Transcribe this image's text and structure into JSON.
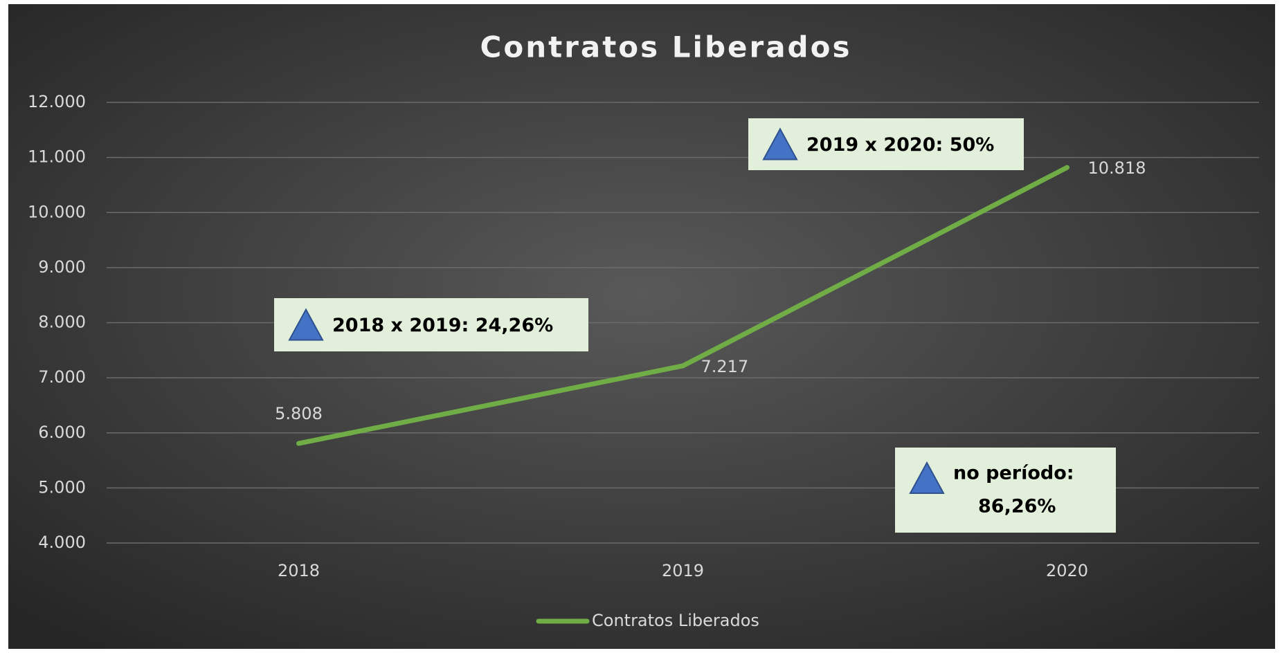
{
  "chart_data": {
    "type": "line",
    "title": "Contratos Liberados",
    "categories": [
      "2018",
      "2019",
      "2020"
    ],
    "series": [
      {
        "name": "Contratos Liberados",
        "color": "#70ad47",
        "values": [
          5808,
          7217,
          10818
        ],
        "value_labels": [
          "5.808",
          "7.217",
          "10.818"
        ]
      }
    ],
    "ylim": [
      4000,
      12000
    ],
    "yticks": [
      {
        "value": 4000,
        "label": "4.000"
      },
      {
        "value": 5000,
        "label": "5.000"
      },
      {
        "value": 6000,
        "label": "6.000"
      },
      {
        "value": 7000,
        "label": "7.000"
      },
      {
        "value": 8000,
        "label": "8.000"
      },
      {
        "value": 9000,
        "label": "9.000"
      },
      {
        "value": 10000,
        "label": "10.000"
      },
      {
        "value": 11000,
        "label": "11.000"
      },
      {
        "value": 12000,
        "label": "12.000"
      }
    ],
    "grid": true,
    "legend": "bottom",
    "annotations": [
      [
        "2018 x 2019: 24,26%"
      ],
      [
        "2019 x 2020: 50%"
      ],
      [
        "no período:",
        "86,26%"
      ]
    ]
  }
}
